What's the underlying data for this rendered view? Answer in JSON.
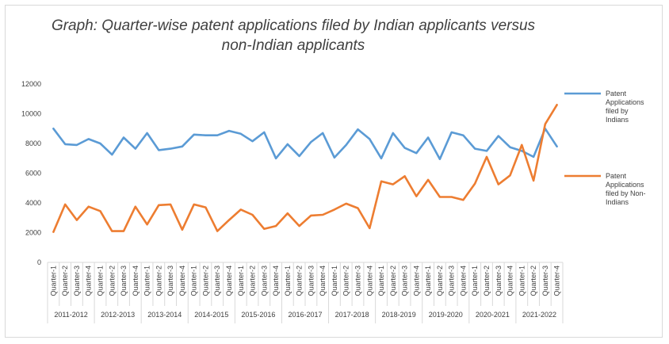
{
  "chart_data": {
    "type": "line",
    "title_line1": "Graph: Quarter-wise patent applications filed by Indian applicants versus",
    "title_line2": "non-Indian applicants",
    "ylim": [
      0,
      12000
    ],
    "yticks": [
      0,
      2000,
      4000,
      6000,
      8000,
      10000,
      12000
    ],
    "grid": false,
    "legend_position": "right",
    "quarter_labels": [
      "Quarter-1",
      "Quarter-2",
      "Quarter-3",
      "Quarter-4"
    ],
    "years": [
      "2011-2012",
      "2012-2013",
      "2013-2014",
      "2014-2015",
      "2015-2016",
      "2016-2017",
      "2017-2018",
      "2018-2019",
      "2019-2020",
      "2020-2021",
      "2021-2022"
    ],
    "series": [
      {
        "name": "Patent Applications filed by Indians",
        "color": "#5b9bd5",
        "values": [
          9000,
          7950,
          7900,
          8300,
          8000,
          7250,
          8400,
          7650,
          8700,
          7550,
          7650,
          7800,
          8600,
          8550,
          8550,
          8850,
          8650,
          8150,
          8750,
          7000,
          7950,
          7150,
          8100,
          8700,
          7050,
          7900,
          8950,
          8300,
          7000,
          8700,
          7700,
          7350,
          8400,
          6950,
          8750,
          8550,
          7650,
          7500,
          8500,
          7750,
          7500,
          7100,
          9000,
          7800
        ]
      },
      {
        "name": "Patent Applications filed by Non-Indians",
        "color": "#ed7d31",
        "values": [
          2050,
          3900,
          2850,
          3750,
          3450,
          2100,
          2100,
          3750,
          2550,
          3850,
          3900,
          2200,
          3900,
          3700,
          2100,
          2850,
          3550,
          3200,
          2250,
          2450,
          3300,
          2450,
          3150,
          3200,
          3550,
          3950,
          3650,
          2300,
          5450,
          5250,
          5800,
          4450,
          5550,
          4400,
          4400,
          4200,
          5300,
          7100,
          5250,
          5850,
          7900,
          5500,
          9300,
          10600
        ]
      }
    ]
  },
  "legend": [
    {
      "label_lines": [
        "Patent",
        "Applications",
        "filed by",
        "Indians"
      ]
    },
    {
      "label_lines": [
        "Patent",
        "Applications",
        "filed by Non-",
        "Indians"
      ]
    }
  ]
}
